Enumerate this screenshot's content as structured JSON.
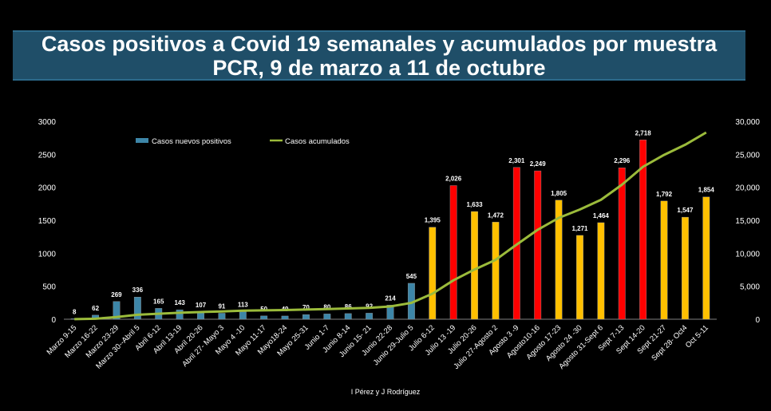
{
  "title": "Casos positivos a Covid 19 semanales y acumulados por muestra PCR, 9 de marzo a 11 de octubre",
  "credit": "I Pérez y J Rodríguez",
  "colors": {
    "background": "#000000",
    "title_bg": "#1f4e68",
    "bar_blue": "#3d86a8",
    "bar_orange": "#ffc000",
    "bar_red": "#ff0000",
    "line": "#9bbb3b",
    "text": "#ffffff"
  },
  "chart_data": {
    "type": "bar",
    "title": "Casos positivos a Covid 19 semanales y acumulados por muestra PCR, 9 de marzo a 11 de octubre",
    "categories": [
      "Marzo 9-15",
      "Marzo 16-22",
      "Marzo 23-29",
      "Marzo 30--Abril 5",
      "Abril 6-12",
      "Abril 13-19",
      "Abril 20-26",
      "Abril 27- Mayo 3",
      "Mayo 4 -10",
      "Mayo 11-17",
      "Mayo18-24",
      "Mayo 25-31",
      "Junio 1-7",
      "Junio 8-14",
      "Junio 15- 21",
      "Junio 22-28",
      "Junio 29-Julio 5",
      "Julio 6-12",
      "Julio 13 -19",
      "Julio 20-26",
      "Julio 27-Agosto 2",
      "Agosto 3 -9",
      "Agosto10-16",
      "Agosto 17-23",
      "Agosto 24 -30",
      "Agosto 31-Sept 6",
      "Sept 7-13",
      "Sept 14-20",
      "Sept 21-27",
      "Sept 28- Oct4",
      "Oct 5-11"
    ],
    "series": [
      {
        "name": "Casos nuevos positivos",
        "type": "bar",
        "axis": "left",
        "values": [
          8,
          62,
          269,
          336,
          165,
          143,
          107,
          91,
          113,
          50,
          49,
          70,
          80,
          86,
          92,
          214,
          545,
          1395,
          2026,
          1633,
          1472,
          2301,
          2249,
          1805,
          1271,
          1464,
          2296,
          2718,
          1792,
          1547,
          1854
        ],
        "data_labels": [
          "8",
          "62",
          "269",
          "336",
          "165",
          "143",
          "107",
          "91",
          "113",
          "50",
          "49",
          "70",
          "80",
          "86",
          "92",
          "214",
          "545",
          "1,395",
          "2,026",
          "1,633",
          "1,472",
          "2,301",
          "2,249",
          "1,805",
          "1,271",
          "1,464",
          "2,296",
          "2,718",
          "1,792",
          "1,547",
          "1,854"
        ],
        "bar_colors": [
          "blue",
          "blue",
          "blue",
          "blue",
          "blue",
          "blue",
          "blue",
          "blue",
          "blue",
          "blue",
          "blue",
          "blue",
          "blue",
          "blue",
          "blue",
          "blue",
          "blue",
          "orange",
          "red",
          "orange",
          "orange",
          "red",
          "red",
          "orange",
          "orange",
          "orange",
          "red",
          "red",
          "orange",
          "orange",
          "orange"
        ]
      },
      {
        "name": "Casos acumulados",
        "type": "line",
        "axis": "right",
        "values": [
          8,
          70,
          339,
          675,
          840,
          983,
          1090,
          1181,
          1294,
          1344,
          1393,
          1463,
          1543,
          1629,
          1721,
          1935,
          2480,
          3875,
          5901,
          7534,
          9006,
          11307,
          13556,
          15361,
          16632,
          18096,
          20392,
          23110,
          24902,
          26449,
          28303
        ]
      }
    ],
    "y_left": {
      "ticks": [
        "0",
        "500",
        "1000",
        "1500",
        "2000",
        "2500",
        "3000"
      ],
      "ylim": [
        0,
        3000
      ]
    },
    "y_right": {
      "ticks": [
        "0",
        "5,000",
        "10,000",
        "15,000",
        "20,000",
        "25,000",
        "30,000"
      ],
      "ylim": [
        0,
        30000
      ]
    },
    "legend": {
      "placement": "top-left",
      "entries": [
        "Casos nuevos positivos",
        "Casos acumulados"
      ]
    },
    "grid": false
  }
}
